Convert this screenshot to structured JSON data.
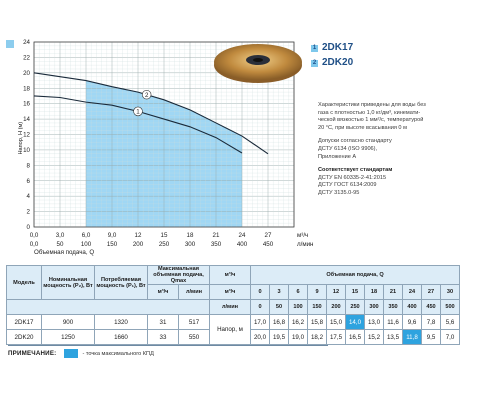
{
  "legend": [
    {
      "num": "1",
      "label": "2DK17"
    },
    {
      "num": "2",
      "label": "2DK20"
    }
  ],
  "notes": {
    "p1": [
      "Характеристики приведены для воды без",
      "газа с плотностью 1,0 кг/дм³, кинемати-",
      "ческой вязкостью 1 мм²/с, температурой",
      "20 °C, при высоте всасывания 0 м"
    ],
    "p2": [
      "Допуски согласно стандарту",
      "ДСТУ 6134 (ISO 9906),",
      "Приложение A"
    ],
    "std_title": "Соответствует стандартам",
    "p3": [
      "ДСТУ EN 60335-2-41:2015",
      "ДСТУ ГОСТ 6134:2009",
      "ДСТУ 3135.0-95"
    ]
  },
  "chart_data": {
    "type": "line",
    "ylabel": "Напор, Н (м)",
    "xlabel": "Объемная подача, Q",
    "x_unit_top": "м³/ч",
    "x_unit_bottom": "л/мин",
    "ylim": [
      0,
      24
    ],
    "xlim": [
      0,
      30
    ],
    "y_ticks": [
      "0",
      "2",
      "4",
      "6",
      "8",
      "10",
      "12",
      "14",
      "16",
      "18",
      "20",
      "22",
      "24"
    ],
    "x_ticks_top": [
      {
        "v": 0,
        "t": "0,0"
      },
      {
        "v": 3,
        "t": "3,0"
      },
      {
        "v": 6,
        "t": "6,0"
      },
      {
        "v": 9,
        "t": "9,0"
      },
      {
        "v": 12,
        "t": "12"
      },
      {
        "v": 15,
        "t": "15"
      },
      {
        "v": 18,
        "t": "18"
      },
      {
        "v": 21,
        "t": "21"
      },
      {
        "v": 24,
        "t": "24"
      },
      {
        "v": 27,
        "t": "27"
      }
    ],
    "x_ticks_bottom": [
      {
        "v": 0,
        "t": "0,0"
      },
      {
        "v": 3,
        "t": "50"
      },
      {
        "v": 6,
        "t": "100"
      },
      {
        "v": 9,
        "t": "150"
      },
      {
        "v": 12,
        "t": "200"
      },
      {
        "v": 15,
        "t": "250"
      },
      {
        "v": 18,
        "t": "300"
      },
      {
        "v": 21,
        "t": "350"
      },
      {
        "v": 24,
        "t": "400"
      },
      {
        "v": 27,
        "t": "450"
      }
    ],
    "highlight_range": [
      6,
      24
    ],
    "series": [
      {
        "name": "1",
        "x": [
          0,
          3,
          6,
          9,
          12,
          15,
          18,
          21,
          24
        ],
        "y": [
          17.0,
          16.8,
          16.2,
          15.8,
          15.0,
          14.0,
          13.0,
          11.6,
          9.6
        ]
      },
      {
        "name": "2",
        "x": [
          0,
          3,
          6,
          9,
          12,
          15,
          18,
          21,
          24,
          27
        ],
        "y": [
          20.0,
          19.5,
          19.0,
          18.2,
          17.5,
          16.5,
          15.2,
          13.5,
          11.8,
          9.5
        ]
      }
    ]
  },
  "table": {
    "col_model": "Модель",
    "col_power": "Номинальная мощность (P₂), Вт",
    "col_cons": "Потребляемая мощность (P₁), Вт",
    "col_qmax": "Максимальная объемная подача, Qmax",
    "col_q": "Объемная подача, Q",
    "unit_m3h": "м³/ч",
    "unit_lmin": "л/мин",
    "q_m3h": [
      "0",
      "3",
      "6",
      "9",
      "12",
      "15",
      "18",
      "21",
      "24",
      "27",
      "30"
    ],
    "q_lmin": [
      "0",
      "50",
      "100",
      "150",
      "200",
      "250",
      "300",
      "350",
      "400",
      "450",
      "500"
    ],
    "head_label": "Напор, м",
    "rows": [
      {
        "model": "2DK17",
        "p2": "900",
        "p1": "1320",
        "qm3": "31",
        "ql": "517",
        "heads": [
          "17,0",
          "16,8",
          "16,2",
          "15,8",
          "15,0",
          "14,0",
          "13,0",
          "11,6",
          "9,6",
          "7,8",
          "5,6"
        ],
        "hl": 5
      },
      {
        "model": "2DK20",
        "p2": "1250",
        "p1": "1660",
        "qm3": "33",
        "ql": "550",
        "heads": [
          "20,0",
          "19,5",
          "19,0",
          "18,2",
          "17,5",
          "16,5",
          "15,2",
          "13,5",
          "11,8",
          "9,5",
          "7,0"
        ],
        "hl": 8
      }
    ]
  },
  "footnote": {
    "label": "ПРИМЕЧАНИЕ:",
    "text": "- точка максимального КПД"
  }
}
